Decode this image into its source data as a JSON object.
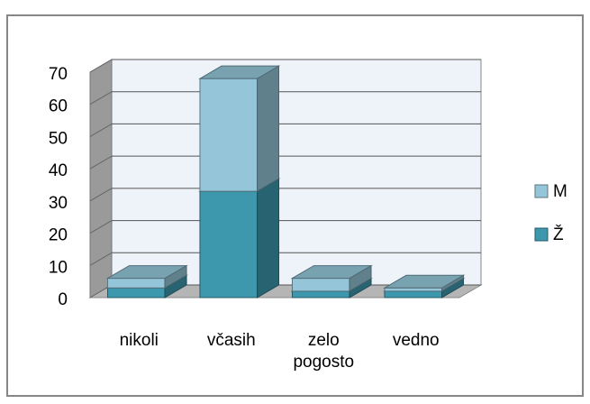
{
  "chart_data": {
    "type": "bar3d_stacked",
    "categories": [
      "nikoli",
      "včasih",
      "zelo pogosto",
      "vedno"
    ],
    "series": [
      {
        "name": "Ž",
        "color": "#3d98ae",
        "values": [
          3,
          33,
          2,
          2
        ]
      },
      {
        "name": "M",
        "color": "#94c5d8",
        "values": [
          3,
          35,
          4,
          1
        ]
      }
    ],
    "ylim": [
      0,
      70
    ],
    "yticks": [
      0,
      10,
      20,
      30,
      40,
      50,
      60,
      70
    ],
    "grid": true,
    "legend": "right"
  }
}
